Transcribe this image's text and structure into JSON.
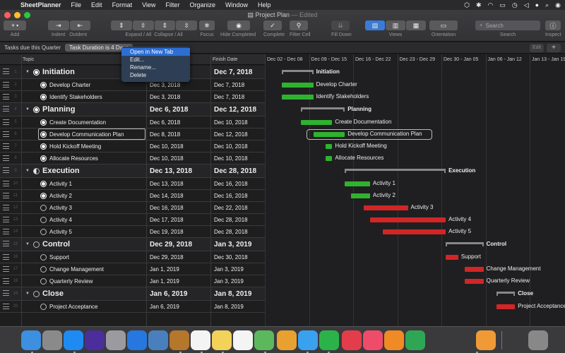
{
  "menubar": {
    "app": "SheetPlanner",
    "items": [
      "File",
      "Edit",
      "Format",
      "View",
      "Filter",
      "Organize",
      "Window",
      "Help"
    ],
    "status_icons": [
      "dropbox-icon",
      "bluetooth-icon",
      "wifi-icon",
      "airplay-icon",
      "time-machine-icon",
      "volume-icon",
      "user-icon",
      "search-icon",
      "siri-icon"
    ]
  },
  "window": {
    "title": "Project Plan",
    "edited": "— Edited"
  },
  "toolbar": {
    "add": "Add",
    "indent": "Indent",
    "outdent": "Outdent",
    "expand_collapse": "Expand / All",
    "collapse_all": "Collapse / All",
    "focus": "Focus",
    "hide_completed": "Hide Completed",
    "complete": "Complete",
    "filter_cell": "Filter Cell",
    "fill_down": "Fill Down",
    "views": "Views",
    "orientation": "Orientation",
    "search_placeholder": "Search",
    "search_label": "Search",
    "inspect": "Inspect"
  },
  "filterbar": {
    "filter1": "Tasks due this Quarter",
    "filter2": "Task Duration is 4 Days",
    "edit": "Edit",
    "plus": "+"
  },
  "context_menu": {
    "items": [
      "Open in New Tab",
      "Edit...",
      "Rename...",
      "Delete"
    ],
    "selected": 0
  },
  "table": {
    "columns": [
      "Topic",
      "Start Date",
      "Finish Date"
    ],
    "rows": [
      {
        "n": "1",
        "topic": "Initiation",
        "start": "Dec 3, 2018",
        "finish": "Dec 7, 2018",
        "group": true,
        "status": "full"
      },
      {
        "n": "2",
        "topic": "Develop Charter",
        "start": "Dec 3, 2018",
        "finish": "Dec 7, 2018",
        "group": false,
        "status": "full"
      },
      {
        "n": "3",
        "topic": "Identify Stakeholders",
        "start": "Dec 3, 2018",
        "finish": "Dec 7, 2018",
        "group": false,
        "status": "full"
      },
      {
        "n": "4",
        "topic": "Planning",
        "start": "Dec 6, 2018",
        "finish": "Dec 12, 2018",
        "group": true,
        "status": "full"
      },
      {
        "n": "5",
        "topic": "Create Documentation",
        "start": "Dec 6, 2018",
        "finish": "Dec 10, 2018",
        "group": false,
        "status": "full"
      },
      {
        "n": "6",
        "topic": "Develop Communication Plan",
        "start": "Dec 8, 2018",
        "finish": "Dec 12, 2018",
        "group": false,
        "status": "full"
      },
      {
        "n": "7",
        "topic": "Hold Kickoff Meeting",
        "start": "Dec 10, 2018",
        "finish": "Dec 10, 2018",
        "group": false,
        "status": "full"
      },
      {
        "n": "8",
        "topic": "Allocate Resources",
        "start": "Dec 10, 2018",
        "finish": "Dec 10, 2018",
        "group": false,
        "status": "full"
      },
      {
        "n": "9",
        "topic": "Execution",
        "start": "Dec 13, 2018",
        "finish": "Dec 28, 2018",
        "group": true,
        "status": "half"
      },
      {
        "n": "10",
        "topic": "Activity 1",
        "start": "Dec 13, 2018",
        "finish": "Dec 16, 2018",
        "group": false,
        "status": "full"
      },
      {
        "n": "11",
        "topic": "Activity 2",
        "start": "Dec 14, 2018",
        "finish": "Dec 16, 2018",
        "group": false,
        "status": "full"
      },
      {
        "n": "12",
        "topic": "Activity 3",
        "start": "Dec 16, 2018",
        "finish": "Dec 22, 2018",
        "group": false,
        "status": "empty"
      },
      {
        "n": "13",
        "topic": "Activity 4",
        "start": "Dec 17, 2018",
        "finish": "Dec 28, 2018",
        "group": false,
        "status": "empty"
      },
      {
        "n": "14",
        "topic": "Activity 5",
        "start": "Dec 19, 2018",
        "finish": "Dec 28, 2018",
        "group": false,
        "status": "empty"
      },
      {
        "n": "15",
        "topic": "Control",
        "start": "Dec 29, 2018",
        "finish": "Jan 3, 2019",
        "group": true,
        "status": "empty"
      },
      {
        "n": "16",
        "topic": "Support",
        "start": "Dec 29, 2018",
        "finish": "Dec 30, 2018",
        "group": false,
        "status": "empty"
      },
      {
        "n": "17",
        "topic": "Change Management",
        "start": "Jan 1, 2019",
        "finish": "Jan 3, 2019",
        "group": false,
        "status": "empty"
      },
      {
        "n": "18",
        "topic": "Quarterly Review",
        "start": "Jan 1, 2019",
        "finish": "Jan 3, 2019",
        "group": false,
        "status": "empty"
      },
      {
        "n": "19",
        "topic": "Close",
        "start": "Jan 6, 2019",
        "finish": "Jan 8, 2019",
        "group": true,
        "status": "empty"
      },
      {
        "n": "20",
        "topic": "Project Acceptance",
        "start": "Jan 6, 2019",
        "finish": "Jan 8, 2019",
        "group": false,
        "status": "empty"
      }
    ],
    "selected_row": 5
  },
  "gantt": {
    "weeks": [
      "Dec 02 - Dec 08",
      "Dec 09 - Dec 15",
      "Dec 16 - Dec 22",
      "Dec 23 - Dec 29",
      "Dec 30 - Jan 05",
      "Jan 06 - Jan 12",
      "Jan 13 - Jan 19"
    ],
    "colors": {
      "done": "#2fb32f",
      "pending": "#d22626",
      "group": "#888888"
    }
  },
  "dock": {
    "apps": [
      "Finder",
      "System Preferences",
      "App Store",
      "Siri",
      "Launchpad",
      "Safari",
      "Preview",
      "Notes Book",
      "Calendar",
      "Notes",
      "Reminders",
      "Maps",
      "Photos",
      "Messages",
      "FaceTime",
      "News",
      "Music",
      "Books",
      "Numbers",
      "Pages",
      "Trash"
    ]
  }
}
